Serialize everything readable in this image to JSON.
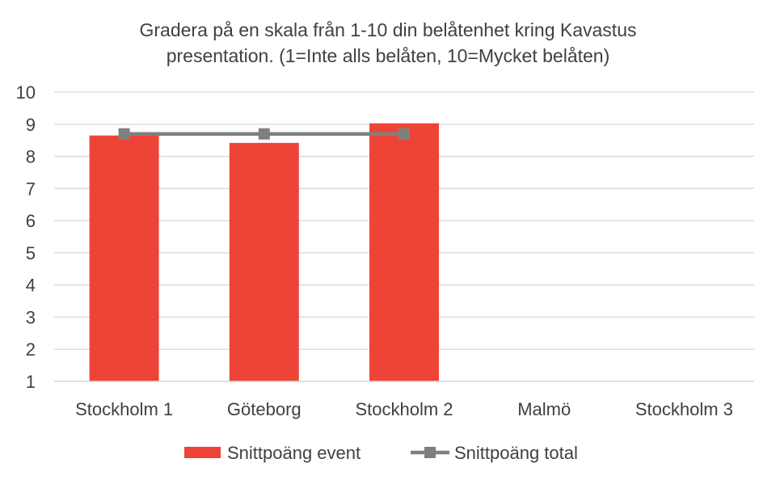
{
  "chart_data": {
    "type": "bar",
    "title_lines": [
      "Gradera på en skala från 1-10 din belåtenhet kring Kavastus",
      "presentation. (1=Inte alls belåten, 10=Mycket belåten)"
    ],
    "categories": [
      "Stockholm 1",
      "Göteborg",
      "Stockholm 2",
      "Malmö",
      "Stockholm 3"
    ],
    "series": [
      {
        "name": "Snittpoäng event",
        "type": "bar",
        "color": "#EE4438",
        "values": [
          8.65,
          8.42,
          9.03,
          null,
          null
        ]
      },
      {
        "name": "Snittpoäng total",
        "type": "line",
        "marker": "square",
        "color": "#7F7F7F",
        "values": [
          8.7,
          8.7,
          8.7,
          null,
          null
        ]
      }
    ],
    "ylim": [
      1,
      10
    ],
    "yticks": [
      1,
      2,
      3,
      4,
      5,
      6,
      7,
      8,
      9,
      10
    ],
    "grid": true,
    "legend_position": "bottom"
  }
}
